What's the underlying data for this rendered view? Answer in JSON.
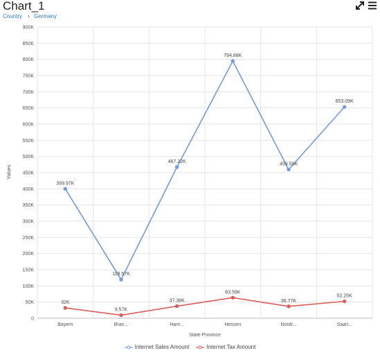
{
  "header": {
    "title": "Chart_1",
    "breadcrumb": [
      "Country",
      "Germany"
    ],
    "icons": {
      "expand": "expand-icon",
      "menu": "hamburger-menu-icon"
    }
  },
  "chart_data": {
    "type": "line",
    "categories": [
      "Bayern",
      "Bran...",
      "Ham...",
      "Hessen",
      "Nordr...",
      "Saarl..."
    ],
    "series": [
      {
        "name": "Internet Sales Amount",
        "color": "#6f9ae6",
        "values": [
          399970,
          119570,
          467220,
          794880,
          459590,
          653090
        ],
        "labels": [
          "399.97K",
          "119.57K",
          "467.22K",
          "794.88K",
          "459.59K",
          "653.09K"
        ]
      },
      {
        "name": "Internet Tax Amount",
        "color": "#dd5c57",
        "values": [
          32000,
          9570,
          37380,
          63590,
          36770,
          52250
        ],
        "labels": [
          "32K",
          "9.57K",
          "37.38K",
          "63.59K",
          "36.77K",
          "52.25K"
        ]
      }
    ],
    "ylim": [
      0,
      900000
    ],
    "yticks": [
      0,
      50000,
      100000,
      150000,
      200000,
      250000,
      300000,
      350000,
      400000,
      450000,
      500000,
      550000,
      600000,
      650000,
      700000,
      750000,
      800000,
      850000,
      900000
    ],
    "ytick_labels": [
      "0",
      "50K",
      "100K",
      "150K",
      "200K",
      "250K",
      "300K",
      "350K",
      "400K",
      "450K",
      "500K",
      "550K",
      "600K",
      "650K",
      "700K",
      "750K",
      "800K",
      "850K",
      "900K"
    ],
    "xlabel": "State-Province",
    "ylabel": "Values",
    "grid": true,
    "legend": "bottom"
  }
}
